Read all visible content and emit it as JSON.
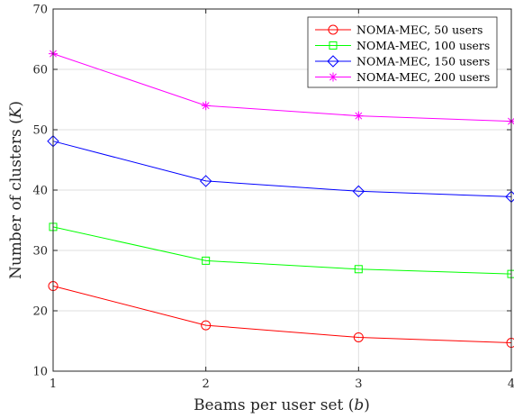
{
  "chart_data": {
    "type": "line",
    "xlabel": "Beams per user set (",
    "xlabel_var": "b",
    "xlabel_close": ")",
    "ylabel": "Number of clusters (",
    "ylabel_var": "K",
    "ylabel_close": ")",
    "xlim": [
      1,
      4
    ],
    "ylim": [
      10,
      70
    ],
    "xticks": [
      1,
      2,
      3,
      4
    ],
    "yticks": [
      10,
      20,
      30,
      40,
      50,
      60,
      70
    ],
    "grid": true,
    "legend_position": "top-right",
    "x": [
      1,
      2,
      3,
      4
    ],
    "series": [
      {
        "name": "NOMA-MEC, 50 users",
        "values": [
          24.1,
          17.6,
          15.6,
          14.7
        ],
        "color": "#ff0000",
        "marker": "circle"
      },
      {
        "name": "NOMA-MEC, 100 users",
        "values": [
          33.9,
          28.3,
          26.9,
          26.1
        ],
        "color": "#00ff00",
        "marker": "square"
      },
      {
        "name": "NOMA-MEC, 150 users",
        "values": [
          48.1,
          41.5,
          39.8,
          38.9
        ],
        "color": "#0000ff",
        "marker": "diamond"
      },
      {
        "name": "NOMA-MEC, 200 users",
        "values": [
          62.6,
          54.0,
          52.3,
          51.4
        ],
        "color": "#ff00ff",
        "marker": "asterisk"
      }
    ]
  }
}
